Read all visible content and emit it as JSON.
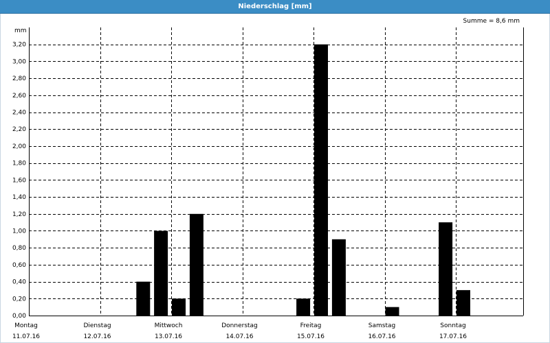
{
  "window": {
    "title": "Niederschlag [mm]"
  },
  "chart_data": {
    "type": "bar",
    "summary": "Summe = 8,6 mm",
    "ylabel": "mm",
    "ylim": [
      0,
      3.4
    ],
    "yticks": [
      0.0,
      0.2,
      0.4,
      0.6,
      0.8,
      1.0,
      1.2,
      1.4,
      1.6,
      1.8,
      2.0,
      2.2,
      2.4,
      2.6,
      2.8,
      3.0,
      3.2
    ],
    "ytick_labels": [
      "0,00",
      "0,20",
      "0,40",
      "0,60",
      "0,80",
      "1,00",
      "1,20",
      "1,40",
      "1,60",
      "1,80",
      "2,00",
      "2,20",
      "2,40",
      "2,60",
      "2,80",
      "3,00",
      "3,20"
    ],
    "days": [
      {
        "name": "Montag",
        "date": "11.07.16"
      },
      {
        "name": "Dienstag",
        "date": "12.07.16"
      },
      {
        "name": "Mittwoch",
        "date": "13.07.16"
      },
      {
        "name": "Donnerstag",
        "date": "14.07.16"
      },
      {
        "name": "Freitag",
        "date": "15.07.16"
      },
      {
        "name": "Samstag",
        "date": "16.07.16"
      },
      {
        "name": "Sonntag",
        "date": "17.07.16"
      }
    ],
    "bars": [
      {
        "time": "12.07.16 12:00",
        "value": 0.4
      },
      {
        "time": "12.07.16 18:00",
        "value": 1.0
      },
      {
        "time": "13.07.16 00:00",
        "value": 0.2
      },
      {
        "time": "13.07.16 06:00",
        "value": 1.2
      },
      {
        "time": "14.07.16 18:00",
        "value": 0.2
      },
      {
        "time": "15.07.16 00:00",
        "value": 3.2
      },
      {
        "time": "15.07.16 06:00",
        "value": 0.9
      },
      {
        "time": "16.07.16 00:00",
        "value": 0.1
      },
      {
        "time": "16.07.16 18:00",
        "value": 1.1
      },
      {
        "time": "17.07.16 00:00",
        "value": 0.3
      }
    ],
    "grid": true,
    "colors": {
      "bar": "#000000",
      "titlebar": "#3b8dc5"
    }
  }
}
